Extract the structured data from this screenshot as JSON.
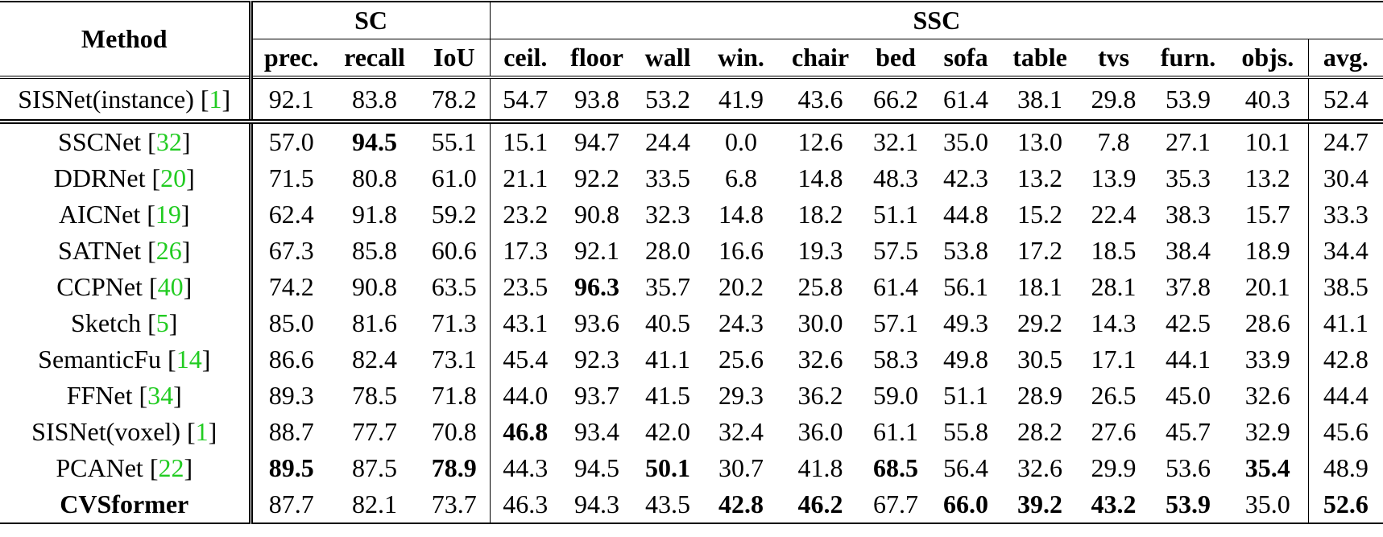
{
  "table": {
    "method_header": "Method",
    "groups": [
      {
        "label": "SC",
        "span": 3
      },
      {
        "label": "SSC",
        "span": 12
      }
    ],
    "columns": [
      "prec.",
      "recall",
      "IoU",
      "ceil.",
      "floor",
      "wall",
      "win.",
      "chair",
      "bed",
      "sofa",
      "table",
      "tvs",
      "furn.",
      "objs.",
      "avg."
    ],
    "cite_brackets": [
      "[",
      "]"
    ],
    "rows": [
      {
        "method": "SISNet(instance)",
        "cite": "1",
        "values": [
          "92.1",
          "83.8",
          "78.2",
          "54.7",
          "93.8",
          "53.2",
          "41.9",
          "43.6",
          "66.2",
          "61.4",
          "38.1",
          "29.8",
          "53.9",
          "40.3",
          "52.4"
        ],
        "bold": []
      },
      {
        "method": "SSCNet",
        "cite": "32",
        "values": [
          "57.0",
          "94.5",
          "55.1",
          "15.1",
          "94.7",
          "24.4",
          "0.0",
          "12.6",
          "32.1",
          "35.0",
          "13.0",
          "7.8",
          "27.1",
          "10.1",
          "24.7"
        ],
        "bold": [
          1
        ]
      },
      {
        "method": "DDRNet",
        "cite": "20",
        "values": [
          "71.5",
          "80.8",
          "61.0",
          "21.1",
          "92.2",
          "33.5",
          "6.8",
          "14.8",
          "48.3",
          "42.3",
          "13.2",
          "13.9",
          "35.3",
          "13.2",
          "30.4"
        ],
        "bold": []
      },
      {
        "method": "AICNet",
        "cite": "19",
        "values": [
          "62.4",
          "91.8",
          "59.2",
          "23.2",
          "90.8",
          "32.3",
          "14.8",
          "18.2",
          "51.1",
          "44.8",
          "15.2",
          "22.4",
          "38.3",
          "15.7",
          "33.3"
        ],
        "bold": []
      },
      {
        "method": "SATNet",
        "cite": "26",
        "values": [
          "67.3",
          "85.8",
          "60.6",
          "17.3",
          "92.1",
          "28.0",
          "16.6",
          "19.3",
          "57.5",
          "53.8",
          "17.2",
          "18.5",
          "38.4",
          "18.9",
          "34.4"
        ],
        "bold": []
      },
      {
        "method": "CCPNet",
        "cite": "40",
        "values": [
          "74.2",
          "90.8",
          "63.5",
          "23.5",
          "96.3",
          "35.7",
          "20.2",
          "25.8",
          "61.4",
          "56.1",
          "18.1",
          "28.1",
          "37.8",
          "20.1",
          "38.5"
        ],
        "bold": [
          4
        ]
      },
      {
        "method": "Sketch",
        "cite": "5",
        "values": [
          "85.0",
          "81.6",
          "71.3",
          "43.1",
          "93.6",
          "40.5",
          "24.3",
          "30.0",
          "57.1",
          "49.3",
          "29.2",
          "14.3",
          "42.5",
          "28.6",
          "41.1"
        ],
        "bold": []
      },
      {
        "method": "SemanticFu",
        "cite": "14",
        "values": [
          "86.6",
          "82.4",
          "73.1",
          "45.4",
          "92.3",
          "41.1",
          "25.6",
          "32.6",
          "58.3",
          "49.8",
          "30.5",
          "17.1",
          "44.1",
          "33.9",
          "42.8"
        ],
        "bold": []
      },
      {
        "method": "FFNet",
        "cite": "34",
        "values": [
          "89.3",
          "78.5",
          "71.8",
          "44.0",
          "93.7",
          "41.5",
          "29.3",
          "36.2",
          "59.0",
          "51.1",
          "28.9",
          "26.5",
          "45.0",
          "32.6",
          "44.4"
        ],
        "bold": []
      },
      {
        "method": "SISNet(voxel)",
        "cite": "1",
        "values": [
          "88.7",
          "77.7",
          "70.8",
          "46.8",
          "93.4",
          "42.0",
          "32.4",
          "36.0",
          "61.1",
          "55.8",
          "28.2",
          "27.6",
          "45.7",
          "32.9",
          "45.6"
        ],
        "bold": [
          3
        ]
      },
      {
        "method": "PCANet",
        "cite": "22",
        "values": [
          "89.5",
          "87.5",
          "78.9",
          "44.3",
          "94.5",
          "50.1",
          "30.7",
          "41.8",
          "68.5",
          "56.4",
          "32.6",
          "29.9",
          "53.6",
          "35.4",
          "48.9"
        ],
        "bold": [
          0,
          2,
          5,
          8,
          13
        ]
      },
      {
        "method": "CVSformer",
        "method_bold": true,
        "values": [
          "87.7",
          "82.1",
          "73.7",
          "46.3",
          "94.3",
          "43.5",
          "42.8",
          "46.2",
          "67.7",
          "66.0",
          "39.2",
          "43.2",
          "53.9",
          "35.0",
          "52.6"
        ],
        "bold": [
          6,
          7,
          9,
          10,
          11,
          12,
          14
        ]
      }
    ]
  }
}
